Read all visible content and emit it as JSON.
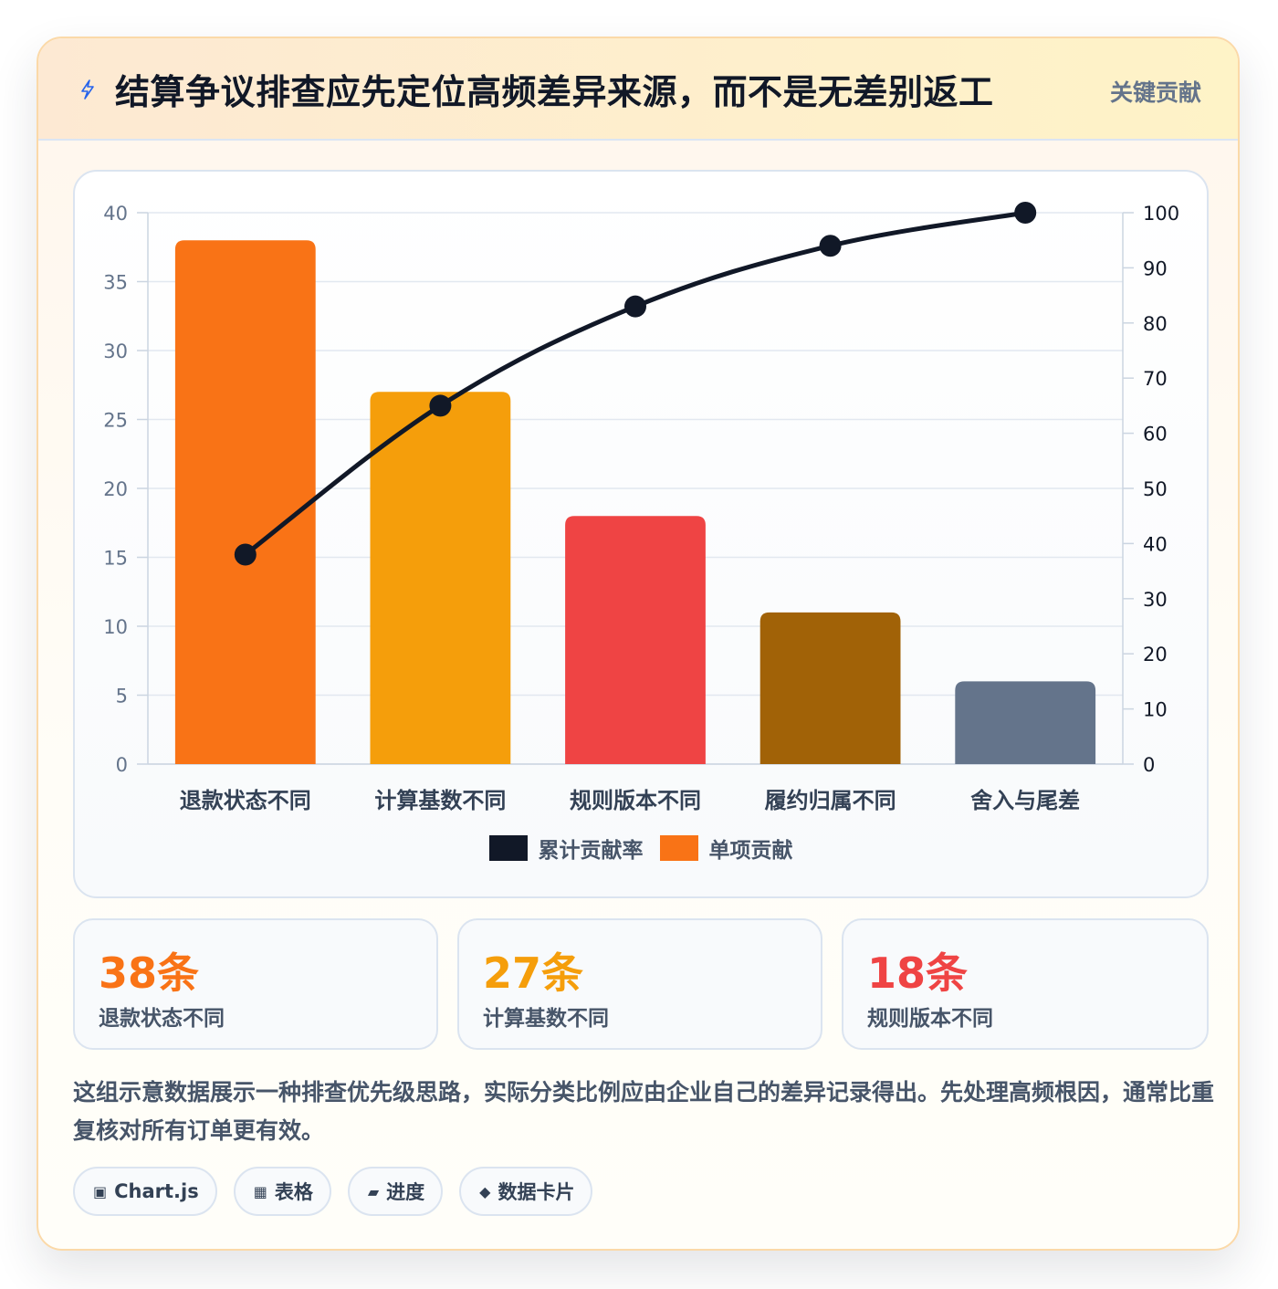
{
  "header": {
    "title": "结算争议排查应先定位高频差异来源，而不是无差别返工",
    "badge": "关键贡献",
    "icon": "lightning-icon"
  },
  "chart_data": {
    "type": "bar",
    "categories": [
      "退款状态不同",
      "计算基数不同",
      "规则版本不同",
      "履约归属不同",
      "舍入与尾差"
    ],
    "series": [
      {
        "name": "单项贡献",
        "type": "bar",
        "axis": "left",
        "values": [
          38,
          27,
          18,
          11,
          6
        ],
        "colors": [
          "#f97316",
          "#f59e0b",
          "#ef4444",
          "#a16207",
          "#64748b"
        ]
      },
      {
        "name": "累计贡献率",
        "type": "line",
        "axis": "right",
        "values": [
          38,
          65,
          83,
          94,
          100
        ],
        "color": "#111827"
      }
    ],
    "ylim": [
      0,
      40
    ],
    "yticks": [
      0,
      5,
      10,
      15,
      20,
      25,
      30,
      35,
      40
    ],
    "y2lim": [
      0,
      100
    ],
    "y2ticks": [
      0,
      10,
      20,
      30,
      40,
      50,
      60,
      70,
      80,
      90,
      100
    ],
    "grid": true,
    "legend_position": "bottom"
  },
  "legend": [
    {
      "label": "累计贡献率",
      "color": "#111827"
    },
    {
      "label": "单项贡献",
      "color": "#f97316"
    }
  ],
  "stats": [
    {
      "value": "38条",
      "label": "退款状态不同",
      "color": "#f97316"
    },
    {
      "value": "27条",
      "label": "计算基数不同",
      "color": "#f59e0b"
    },
    {
      "value": "18条",
      "label": "规则版本不同",
      "color": "#ef4444"
    }
  ],
  "note": "这组示意数据展示一种排查优先级思路，实际分类比例应由企业自己的差异记录得出。先处理高频根因，通常比重复核对所有订单更有效。",
  "tags": [
    {
      "icon": "▣",
      "label": "Chart.js"
    },
    {
      "icon": "▦",
      "label": "表格"
    },
    {
      "icon": "▰",
      "label": "进度"
    },
    {
      "icon": "◆",
      "label": "数据卡片"
    }
  ]
}
